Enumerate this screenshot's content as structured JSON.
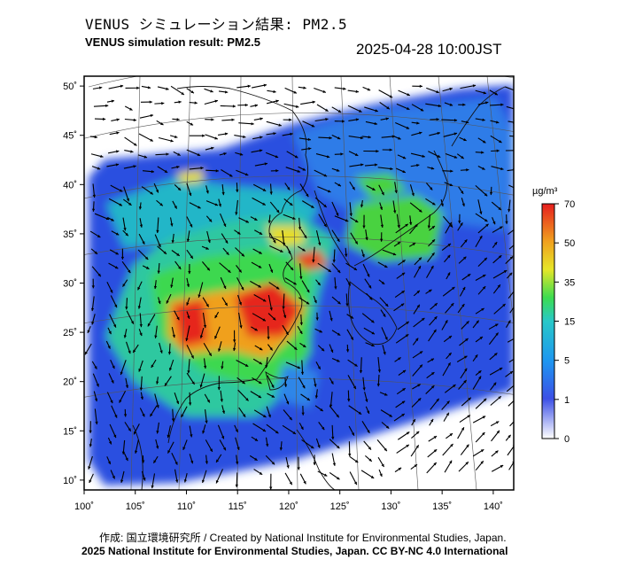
{
  "header": {
    "title_jp": "VENUS シミュレーション結果: PM2.5",
    "title_en": "VENUS simulation result: PM2.5",
    "timestamp": "2025-04-28 10:00JST"
  },
  "footer": {
    "credit": "作成: 国立環境研究所 / Created by National Institute for Environmental Studies, Japan.",
    "copyright": "2025 National Institute for Environmental Studies, Japan. CC BY-NC 4.0 International"
  },
  "colorbar": {
    "unit": "µg/m³",
    "ticks": [
      "70",
      "50",
      "35",
      "15",
      "5",
      "1",
      "0"
    ],
    "colors": [
      "#ffffff",
      "#3c50e6",
      "#1e96f0",
      "#28c8c8",
      "#3cdc50",
      "#e6e628",
      "#f0a01e",
      "#e61e1e"
    ]
  },
  "chart_data": {
    "type": "heatmap",
    "variable": "PM2.5",
    "unit": "µg/m³",
    "color_levels": [
      0,
      1,
      5,
      15,
      35,
      50,
      70
    ],
    "x_axis": {
      "label": "",
      "ticks": [
        "100˚",
        "105˚",
        "110˚",
        "115˚",
        "120˚",
        "125˚",
        "130˚",
        "135˚",
        "140˚"
      ],
      "range": [
        100,
        142
      ]
    },
    "y_axis": {
      "label": "",
      "ticks": [
        "10˚",
        "15˚",
        "20˚",
        "25˚",
        "30˚",
        "35˚",
        "40˚",
        "45˚",
        "50˚"
      ],
      "range": [
        9,
        51
      ]
    },
    "overlay": "wind vectors",
    "grid": true
  }
}
